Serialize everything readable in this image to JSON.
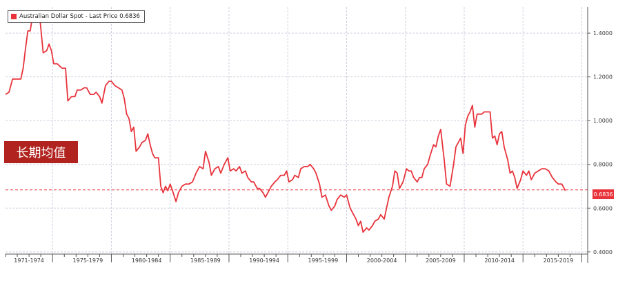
{
  "legend": {
    "label": "Australian Dollar Spot - Last Price",
    "value": "0.6836",
    "color": "#e8333b"
  },
  "annotation": {
    "text": "长期均值",
    "color": "#b0231e"
  },
  "last_price_tag": "0.6836",
  "colors": {
    "line": "#e8333b",
    "grid": "#cfcfe0",
    "average_line": "#e8333b",
    "axis": "#555555"
  },
  "chart_data": {
    "type": "line",
    "title": "",
    "xlabel": "",
    "ylabel": "",
    "categories": [
      "1971-1974",
      "1975-1979",
      "1980-1984",
      "1985-1989",
      "1990-1994",
      "1995-1999",
      "2000-2004",
      "2005-2009",
      "2010-2014",
      "2015-2019"
    ],
    "x_range": [
      1971.0,
      2020.5
    ],
    "ylim": [
      0.39,
      1.52
    ],
    "y_ticks": [
      0.4,
      0.6,
      0.8,
      1.0,
      1.2,
      1.4
    ],
    "y_tick_labels": [
      "0.4000",
      "0.6000",
      "0.8000",
      "1.0000",
      "1.2000",
      "1.4000"
    ],
    "average_line": 0.6836,
    "grid": true,
    "series": [
      {
        "values": [
          [
            1971.0,
            1.12
          ],
          [
            1971.3,
            1.13
          ],
          [
            1971.6,
            1.19
          ],
          [
            1971.9,
            1.19
          ],
          [
            1972.3,
            1.19
          ],
          [
            1972.5,
            1.24
          ],
          [
            1972.7,
            1.33
          ],
          [
            1972.9,
            1.41
          ],
          [
            1973.1,
            1.41
          ],
          [
            1973.3,
            1.48
          ],
          [
            1973.6,
            1.48
          ],
          [
            1973.9,
            1.48
          ],
          [
            1974.2,
            1.31
          ],
          [
            1974.5,
            1.32
          ],
          [
            1974.7,
            1.35
          ],
          [
            1974.9,
            1.32
          ],
          [
            1975.1,
            1.26
          ],
          [
            1975.4,
            1.26
          ],
          [
            1975.6,
            1.25
          ],
          [
            1975.8,
            1.24
          ],
          [
            1976.1,
            1.24
          ],
          [
            1976.3,
            1.09
          ],
          [
            1976.6,
            1.11
          ],
          [
            1976.9,
            1.11
          ],
          [
            1977.1,
            1.14
          ],
          [
            1977.4,
            1.14
          ],
          [
            1977.7,
            1.15
          ],
          [
            1977.9,
            1.15
          ],
          [
            1978.2,
            1.12
          ],
          [
            1978.5,
            1.12
          ],
          [
            1978.7,
            1.13
          ],
          [
            1979.0,
            1.11
          ],
          [
            1979.2,
            1.08
          ],
          [
            1979.5,
            1.16
          ],
          [
            1979.8,
            1.18
          ],
          [
            1980.0,
            1.18
          ],
          [
            1980.3,
            1.16
          ],
          [
            1980.6,
            1.15
          ],
          [
            1980.9,
            1.14
          ],
          [
            1981.1,
            1.1
          ],
          [
            1981.3,
            1.03
          ],
          [
            1981.5,
            1.01
          ],
          [
            1981.7,
            0.95
          ],
          [
            1981.9,
            0.97
          ],
          [
            1982.1,
            0.86
          ],
          [
            1982.4,
            0.88
          ],
          [
            1982.6,
            0.9
          ],
          [
            1982.9,
            0.91
          ],
          [
            1983.1,
            0.94
          ],
          [
            1983.3,
            0.89
          ],
          [
            1983.5,
            0.85
          ],
          [
            1983.7,
            0.83
          ],
          [
            1984.0,
            0.83
          ],
          [
            1984.2,
            0.7
          ],
          [
            1984.4,
            0.67
          ],
          [
            1984.6,
            0.7
          ],
          [
            1984.8,
            0.68
          ],
          [
            1985.0,
            0.71
          ],
          [
            1985.2,
            0.68
          ],
          [
            1985.5,
            0.63
          ],
          [
            1985.7,
            0.67
          ],
          [
            1986.0,
            0.7
          ],
          [
            1986.3,
            0.71
          ],
          [
            1986.6,
            0.71
          ],
          [
            1986.9,
            0.72
          ],
          [
            1987.2,
            0.76
          ],
          [
            1987.5,
            0.79
          ],
          [
            1987.8,
            0.78
          ],
          [
            1988.0,
            0.86
          ],
          [
            1988.3,
            0.81
          ],
          [
            1988.5,
            0.75
          ],
          [
            1988.8,
            0.78
          ],
          [
            1989.1,
            0.79
          ],
          [
            1989.3,
            0.76
          ],
          [
            1989.6,
            0.8
          ],
          [
            1989.9,
            0.83
          ],
          [
            1990.1,
            0.77
          ],
          [
            1990.4,
            0.78
          ],
          [
            1990.6,
            0.77
          ],
          [
            1990.9,
            0.79
          ],
          [
            1991.1,
            0.76
          ],
          [
            1991.4,
            0.77
          ],
          [
            1991.6,
            0.74
          ],
          [
            1991.9,
            0.72
          ],
          [
            1992.1,
            0.72
          ],
          [
            1992.4,
            0.69
          ],
          [
            1992.6,
            0.69
          ],
          [
            1992.9,
            0.67
          ],
          [
            1993.1,
            0.65
          ],
          [
            1993.4,
            0.68
          ],
          [
            1993.6,
            0.7
          ],
          [
            1993.9,
            0.72
          ],
          [
            1994.1,
            0.73
          ],
          [
            1994.4,
            0.75
          ],
          [
            1994.7,
            0.75
          ],
          [
            1994.9,
            0.77
          ],
          [
            1995.1,
            0.72
          ],
          [
            1995.4,
            0.73
          ],
          [
            1995.6,
            0.75
          ],
          [
            1995.9,
            0.74
          ],
          [
            1996.1,
            0.78
          ],
          [
            1996.4,
            0.79
          ],
          [
            1996.7,
            0.79
          ],
          [
            1996.9,
            0.8
          ],
          [
            1997.2,
            0.78
          ],
          [
            1997.4,
            0.76
          ],
          [
            1997.7,
            0.71
          ],
          [
            1997.9,
            0.65
          ],
          [
            1998.2,
            0.66
          ],
          [
            1998.5,
            0.61
          ],
          [
            1998.7,
            0.59
          ],
          [
            1999.0,
            0.61
          ],
          [
            1999.2,
            0.64
          ],
          [
            1999.5,
            0.66
          ],
          [
            1999.8,
            0.65
          ],
          [
            2000.0,
            0.66
          ],
          [
            2000.3,
            0.6
          ],
          [
            2000.6,
            0.57
          ],
          [
            2000.8,
            0.55
          ],
          [
            2001.0,
            0.52
          ],
          [
            2001.2,
            0.54
          ],
          [
            2001.4,
            0.49
          ],
          [
            2001.7,
            0.51
          ],
          [
            2001.9,
            0.5
          ],
          [
            2002.2,
            0.52
          ],
          [
            2002.4,
            0.54
          ],
          [
            2002.7,
            0.55
          ],
          [
            2002.9,
            0.57
          ],
          [
            2003.2,
            0.55
          ],
          [
            2003.4,
            0.6
          ],
          [
            2003.6,
            0.65
          ],
          [
            2003.9,
            0.7
          ],
          [
            2004.1,
            0.77
          ],
          [
            2004.3,
            0.76
          ],
          [
            2004.5,
            0.69
          ],
          [
            2004.8,
            0.72
          ],
          [
            2005.1,
            0.78
          ],
          [
            2005.3,
            0.77
          ],
          [
            2005.5,
            0.77
          ],
          [
            2005.7,
            0.74
          ],
          [
            2006.0,
            0.72
          ],
          [
            2006.2,
            0.74
          ],
          [
            2006.4,
            0.74
          ],
          [
            2006.6,
            0.78
          ],
          [
            2006.9,
            0.8
          ],
          [
            2007.1,
            0.84
          ],
          [
            2007.4,
            0.89
          ],
          [
            2007.6,
            0.88
          ],
          [
            2007.8,
            0.93
          ],
          [
            2008.0,
            0.96
          ],
          [
            2008.3,
            0.82
          ],
          [
            2008.5,
            0.71
          ],
          [
            2008.8,
            0.7
          ],
          [
            2009.1,
            0.8
          ],
          [
            2009.3,
            0.88
          ],
          [
            2009.5,
            0.9
          ],
          [
            2009.7,
            0.92
          ],
          [
            2009.9,
            0.85
          ],
          [
            2010.1,
            0.98
          ],
          [
            2010.3,
            1.02
          ],
          [
            2010.5,
            1.04
          ],
          [
            2010.7,
            1.07
          ],
          [
            2010.9,
            0.97
          ],
          [
            2011.1,
            1.03
          ],
          [
            2011.3,
            1.03
          ],
          [
            2011.5,
            1.03
          ],
          [
            2011.7,
            1.04
          ],
          [
            2011.9,
            1.04
          ],
          [
            2012.2,
            1.04
          ],
          [
            2012.4,
            0.92
          ],
          [
            2012.6,
            0.93
          ],
          [
            2012.8,
            0.89
          ],
          [
            2013.0,
            0.94
          ],
          [
            2013.2,
            0.95
          ],
          [
            2013.4,
            0.88
          ],
          [
            2013.7,
            0.82
          ],
          [
            2013.9,
            0.76
          ],
          [
            2014.1,
            0.77
          ],
          [
            2014.3,
            0.74
          ],
          [
            2014.5,
            0.69
          ],
          [
            2014.8,
            0.73
          ],
          [
            2015.0,
            0.77
          ],
          [
            2015.3,
            0.75
          ],
          [
            2015.5,
            0.77
          ],
          [
            2015.7,
            0.73
          ],
          [
            2016.0,
            0.76
          ],
          [
            2016.3,
            0.77
          ],
          [
            2016.6,
            0.78
          ],
          [
            2016.9,
            0.78
          ],
          [
            2017.2,
            0.77
          ],
          [
            2017.5,
            0.74
          ],
          [
            2017.8,
            0.72
          ],
          [
            2018.0,
            0.71
          ],
          [
            2018.3,
            0.71
          ],
          [
            2018.6,
            0.68
          ]
        ]
      }
    ]
  }
}
